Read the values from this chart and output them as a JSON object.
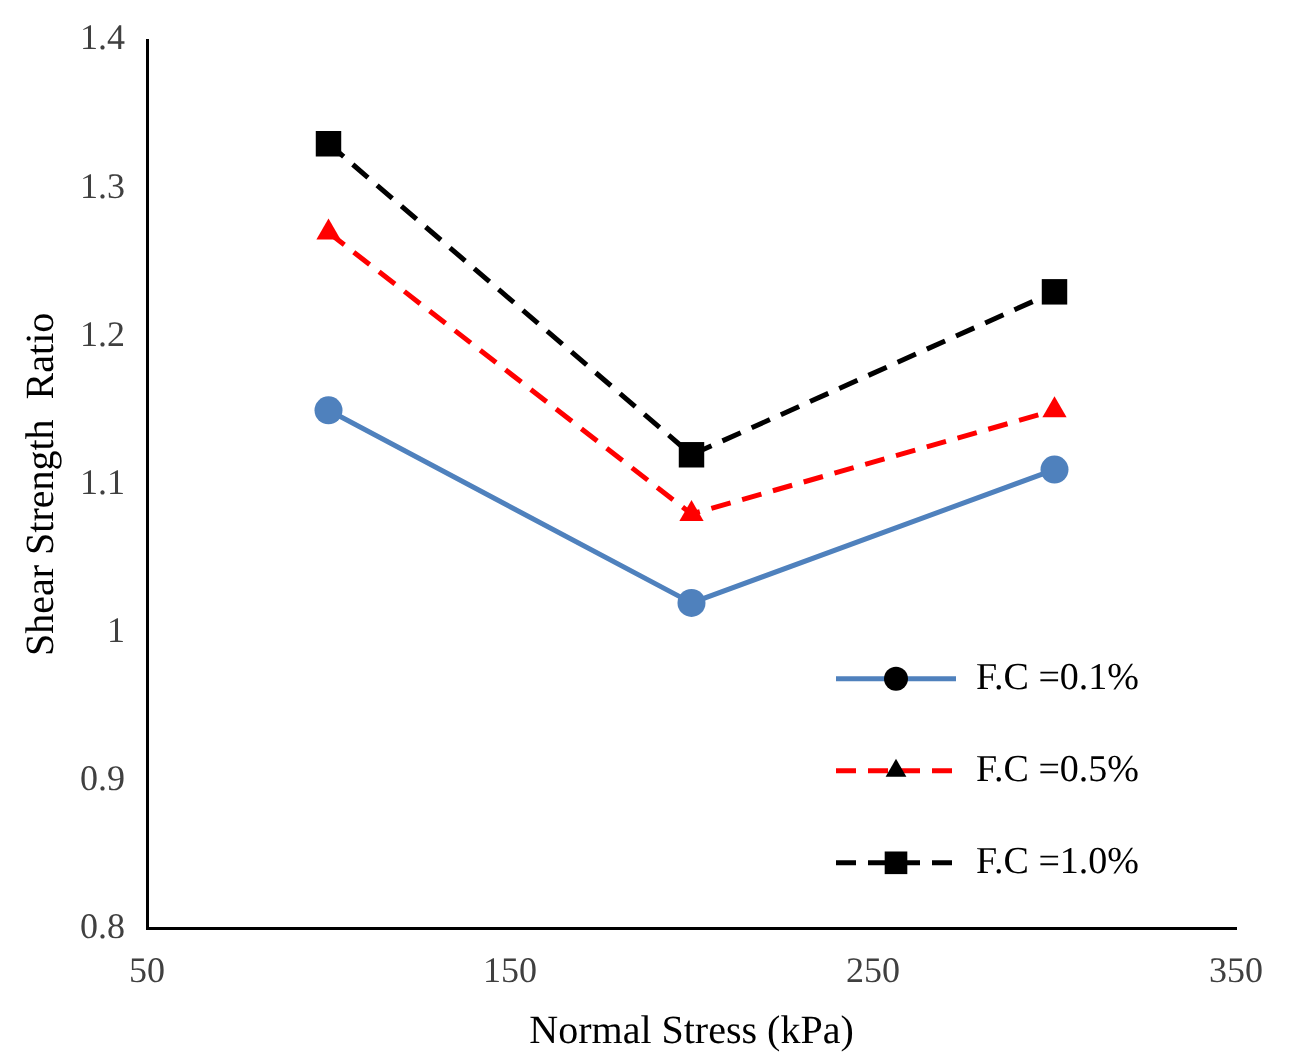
{
  "chart_data": {
    "type": "line",
    "xlabel": "Normal Stress (kPa)",
    "ylabel": "Shear Strength  Ratio",
    "x": [
      100,
      200,
      300
    ],
    "series": [
      {
        "name": "F.C =0.1%",
        "color": "#4f81bd",
        "values": [
          1.15,
          1.02,
          1.11
        ],
        "marker": "circle",
        "line_style": "solid"
      },
      {
        "name": "F.C =0.5%",
        "color": "#ff0000",
        "values": [
          1.27,
          1.08,
          1.15
        ],
        "marker": "triangle",
        "line_style": "dashed"
      },
      {
        "name": "F.C =1.0%",
        "color": "#000000",
        "values": [
          1.33,
          1.12,
          1.23
        ],
        "marker": "square",
        "line_style": "dashed"
      }
    ],
    "xlim": [
      50,
      350
    ],
    "xticks": [
      50,
      150,
      250,
      350
    ],
    "ylim": [
      0.8,
      1.4
    ],
    "yticks": [
      0.8,
      0.9,
      1,
      1.1,
      1.2,
      1.3,
      1.4
    ],
    "grid": false,
    "legend": "bottom right"
  }
}
